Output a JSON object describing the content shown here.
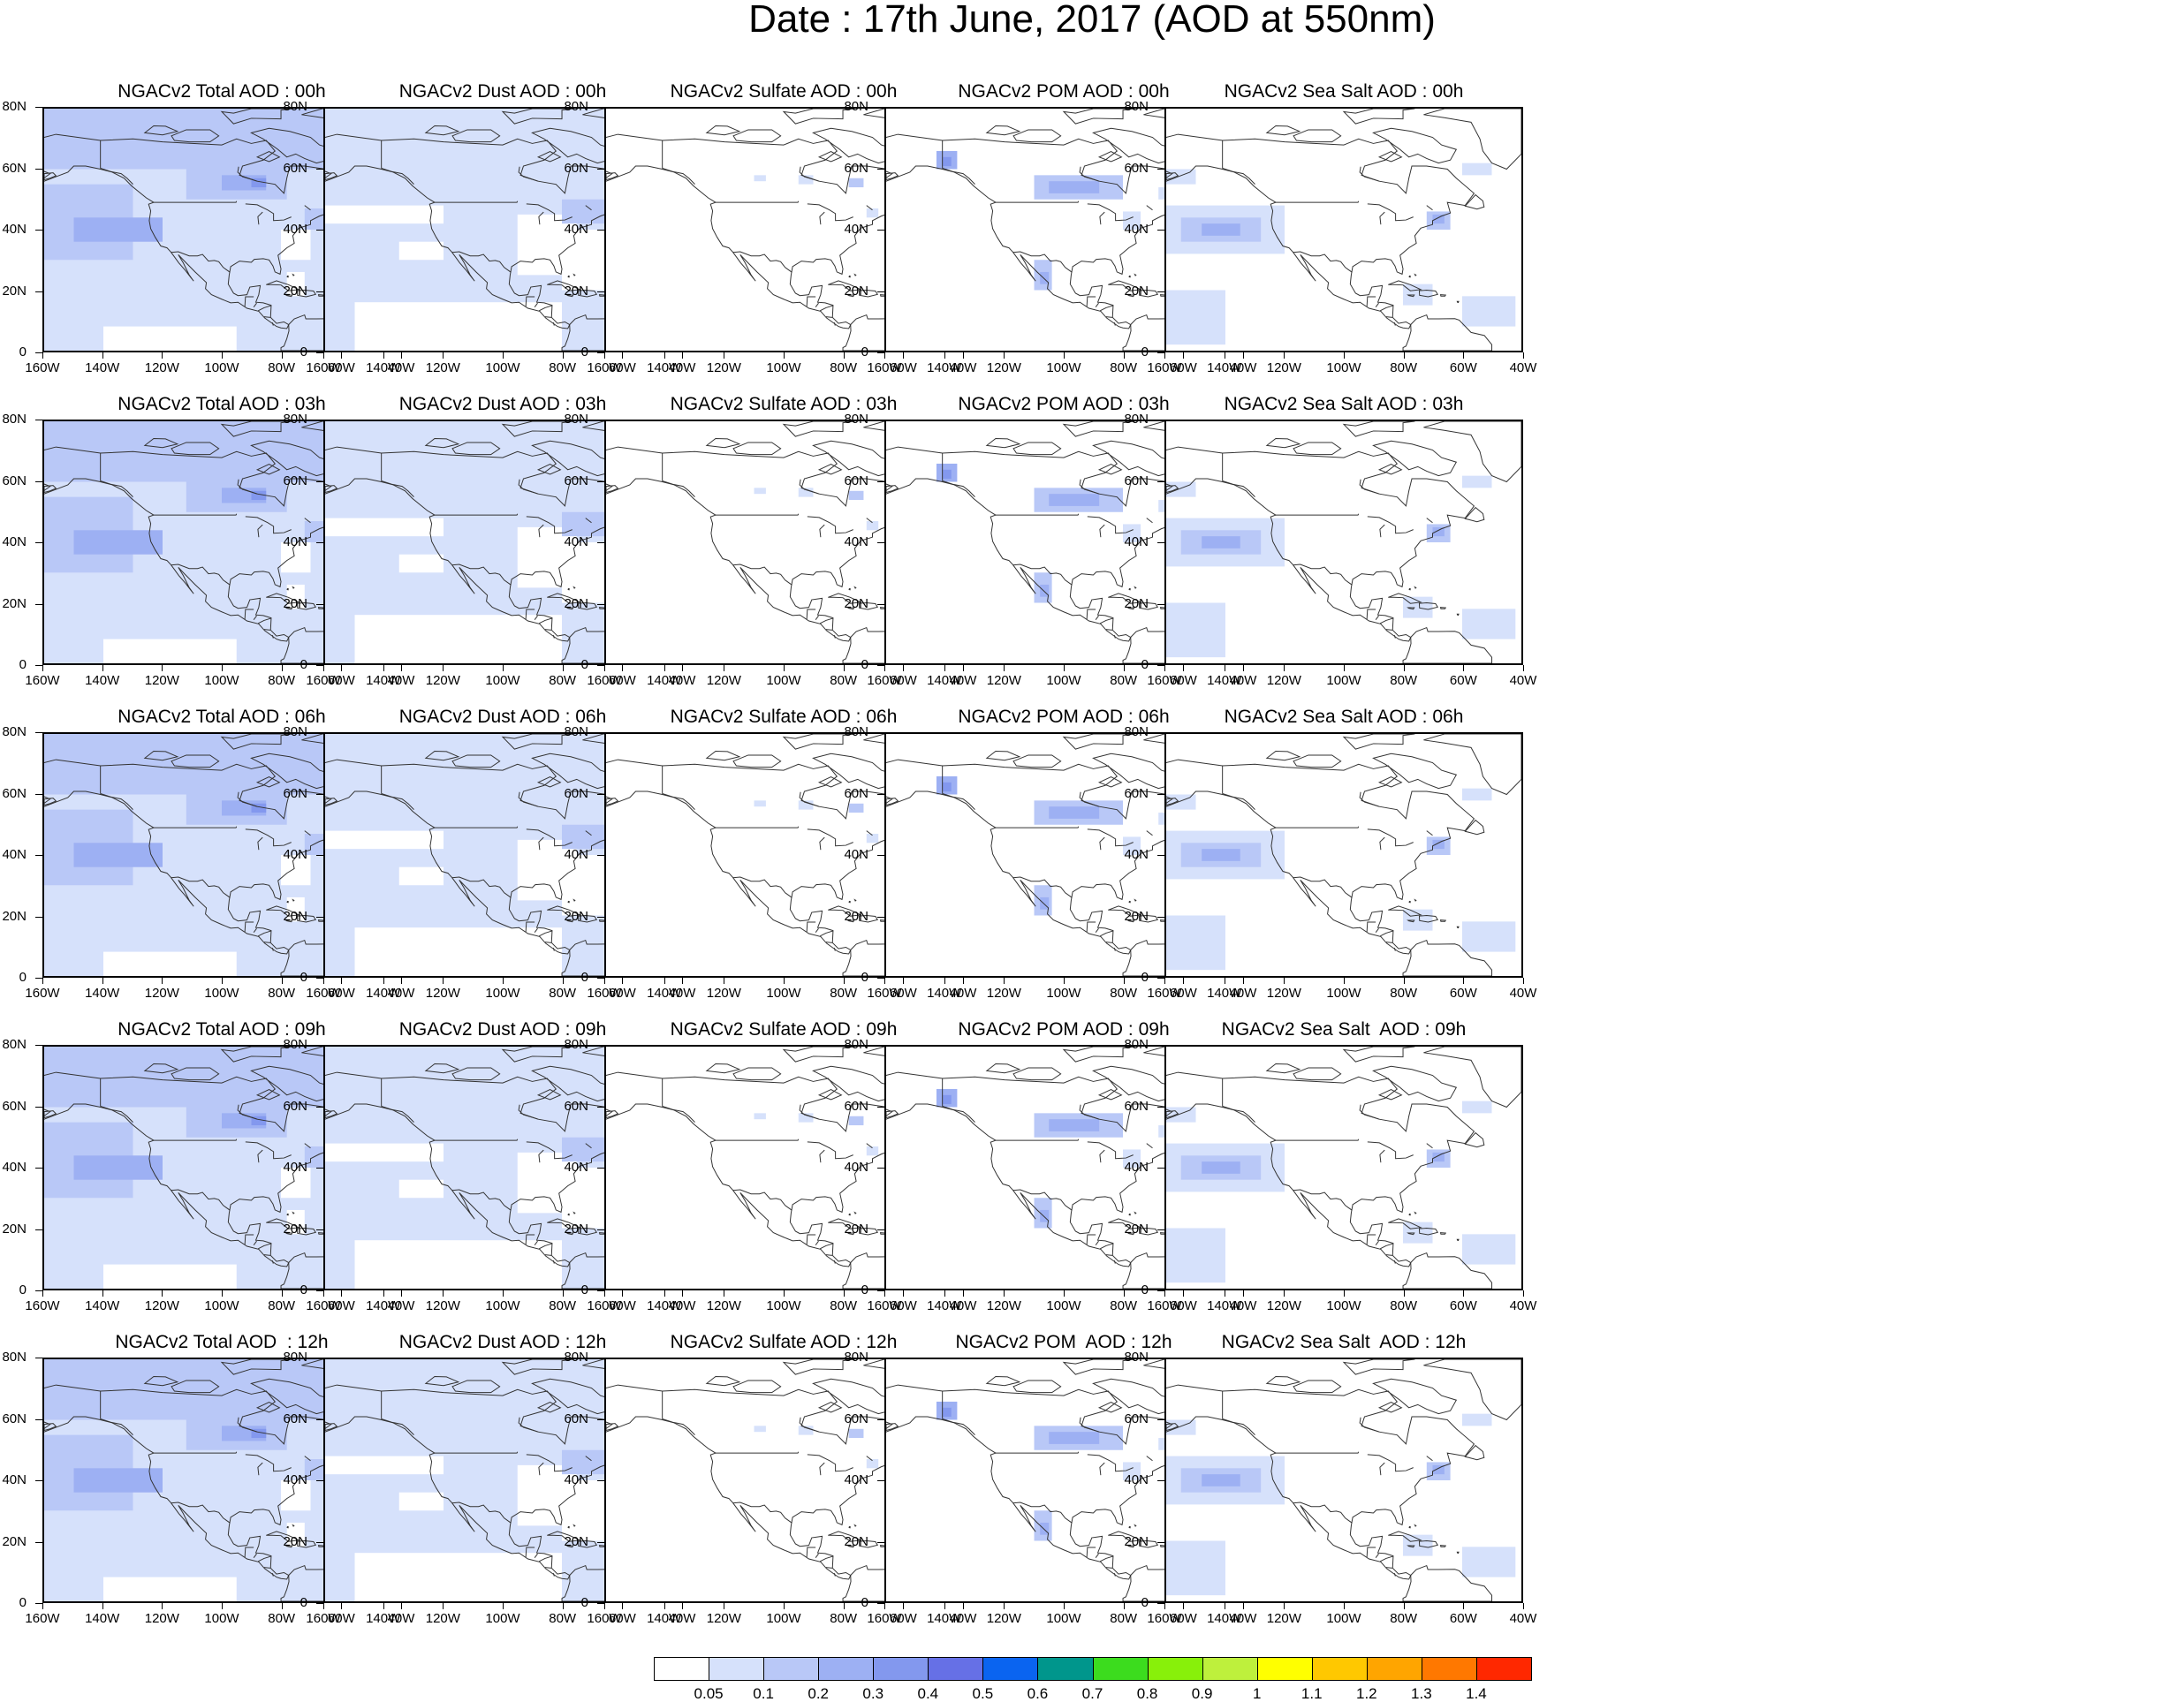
{
  "page": {
    "title": "Date : 17th June, 2017 (AOD at 550nm)"
  },
  "colors": {
    "land_outline": "#333333",
    "border": "#000000",
    "background": "#ffffff",
    "pale_blue": "#d6e1fb",
    "light_blue": "#b9c8f7",
    "mid_blue": "#9db0f3",
    "blue": "#8398ee",
    "deep_blue": "#6f80e9"
  },
  "map_axes": {
    "lat_labels": [
      "80N",
      "60N",
      "40N",
      "20N",
      "0"
    ],
    "lon_labels": [
      "160W",
      "140W",
      "120W",
      "100W",
      "80W",
      "60W",
      "40W"
    ]
  },
  "panels": [
    {
      "title": "NGACv2 Total AOD : 00h",
      "species": "total",
      "hour": "00h"
    },
    {
      "title": "NGACv2 Dust AOD : 00h",
      "species": "dust",
      "hour": "00h"
    },
    {
      "title": "NGACv2 Sulfate AOD : 00h",
      "species": "sulfate",
      "hour": "00h"
    },
    {
      "title": "NGACv2 POM AOD : 00h",
      "species": "pom",
      "hour": "00h"
    },
    {
      "title": "NGACv2 Sea Salt AOD : 00h",
      "species": "seasalt",
      "hour": "00h"
    },
    {
      "title": "NGACv2 Total AOD : 03h",
      "species": "total",
      "hour": "03h"
    },
    {
      "title": "NGACv2 Dust AOD : 03h",
      "species": "dust",
      "hour": "03h"
    },
    {
      "title": "NGACv2 Sulfate AOD : 03h",
      "species": "sulfate",
      "hour": "03h"
    },
    {
      "title": "NGACv2 POM AOD : 03h",
      "species": "pom",
      "hour": "03h"
    },
    {
      "title": "NGACv2 Sea Salt AOD : 03h",
      "species": "seasalt",
      "hour": "03h"
    },
    {
      "title": "NGACv2 Total AOD : 06h",
      "species": "total",
      "hour": "06h"
    },
    {
      "title": "NGACv2 Dust AOD : 06h",
      "species": "dust",
      "hour": "06h"
    },
    {
      "title": "NGACv2 Sulfate AOD : 06h",
      "species": "sulfate",
      "hour": "06h"
    },
    {
      "title": "NGACv2 POM AOD : 06h",
      "species": "pom",
      "hour": "06h"
    },
    {
      "title": "NGACv2 Sea Salt AOD : 06h",
      "species": "seasalt",
      "hour": "06h"
    },
    {
      "title": "NGACv2 Total AOD : 09h",
      "species": "total",
      "hour": "09h"
    },
    {
      "title": "NGACv2 Dust AOD : 09h",
      "species": "dust",
      "hour": "09h"
    },
    {
      "title": "NGACv2 Sulfate AOD : 09h",
      "species": "sulfate",
      "hour": "09h"
    },
    {
      "title": "NGACv2 POM AOD : 09h",
      "species": "pom",
      "hour": "09h"
    },
    {
      "title": "NGACv2 Sea Salt  AOD : 09h",
      "species": "seasalt",
      "hour": "09h"
    },
    {
      "title": "NGACv2 Total AOD  : 12h",
      "species": "total",
      "hour": "12h"
    },
    {
      "title": "NGACv2 Dust AOD : 12h",
      "species": "dust",
      "hour": "12h"
    },
    {
      "title": "NGACv2 Sulfate AOD : 12h",
      "species": "sulfate",
      "hour": "12h"
    },
    {
      "title": "NGACv2 POM  AOD : 12h",
      "species": "pom",
      "hour": "12h"
    },
    {
      "title": "NGACv2 Sea Salt  AOD : 12h",
      "species": "seasalt",
      "hour": "12h"
    }
  ],
  "colorbar": {
    "colors": [
      "#ffffff",
      "#d6e1fb",
      "#b9c8f7",
      "#9db0f3",
      "#8398ee",
      "#6670e6",
      "#0a64f0",
      "#00968c",
      "#3cdc1e",
      "#88f00a",
      "#bef03c",
      "#ffff00",
      "#ffc800",
      "#ffa500",
      "#ff7800",
      "#ff2800"
    ],
    "labels": [
      "0.05",
      "0.1",
      "0.2",
      "0.3",
      "0.4",
      "0.5",
      "0.6",
      "0.7",
      "0.8",
      "0.9",
      "1",
      "1.1",
      "1.2",
      "1.3",
      "1.4"
    ]
  }
}
